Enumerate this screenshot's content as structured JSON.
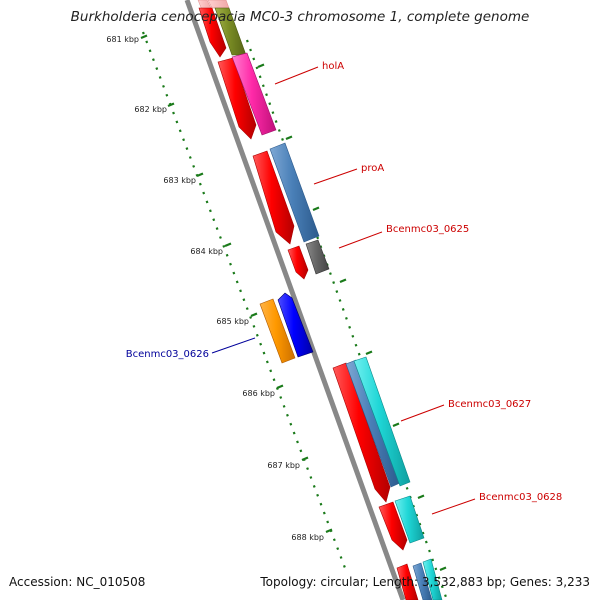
{
  "title": "Burkholderia cenocepacia MC0-3 chromosome 1, complete genome",
  "footer": {
    "accession": "Accession: NC_010508",
    "stats": "Topology: circular; Length: 3,532,883 bp; Genes: 3,233"
  },
  "colors": {
    "backbone": "#888888",
    "tick": "#1a7a1a",
    "label_red": "#cc0000",
    "label_blue": "#00009a"
  },
  "axis": {
    "unit": "kbp",
    "ticks": [
      {
        "kbp": 681,
        "label": "681 kbp"
      },
      {
        "kbp": 682,
        "label": "682 kbp"
      },
      {
        "kbp": 683,
        "label": "683 kbp"
      },
      {
        "kbp": 684,
        "label": "684 kbp"
      },
      {
        "kbp": 685,
        "label": "685 kbp"
      },
      {
        "kbp": 686,
        "label": "686 kbp"
      },
      {
        "kbp": 687,
        "label": "687 kbp"
      },
      {
        "kbp": 688,
        "label": "688 kbp"
      }
    ]
  },
  "labels": [
    {
      "text": "holA",
      "strand": "forward"
    },
    {
      "text": "proA",
      "strand": "forward"
    },
    {
      "text": "Bcenmc03_0625",
      "strand": "forward"
    },
    {
      "text": "Bcenmc03_0626",
      "strand": "reverse"
    },
    {
      "text": "Bcenmc03_0627",
      "strand": "forward"
    },
    {
      "text": "Bcenmc03_0628",
      "strand": "forward"
    }
  ]
}
